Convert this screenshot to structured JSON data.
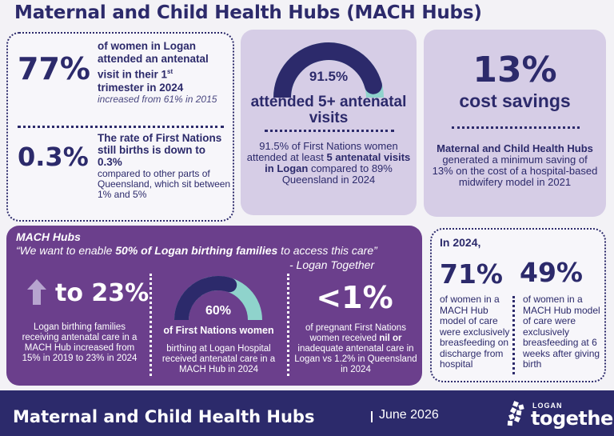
{
  "title": "Maternal and Child Health Hubs (MACH Hubs)",
  "panel1": {
    "stat1": "77%",
    "stat1_line1": "of women in Logan",
    "stat1_line2": "attended an antenatal",
    "stat1_line3a": "visit in their 1",
    "stat1_sup": "st",
    "stat1_line4": "trimester in 2024",
    "stat1_note": "increased from 61% in 2015",
    "stat2": "0.3%",
    "stat2_head": "The rate of First Nations still births is down to 0.3%",
    "stat2_text": "compared to other parts of Queensland, which sit between 1% and 5%"
  },
  "panel2": {
    "gauge_value": 91.5,
    "gauge_label": "91.5%",
    "heading": "attended 5+ antenatal visits",
    "text_a": "91.5% of First Nations women attended at least ",
    "text_b": "5 antenatal visits in Logan",
    "text_c": " compared to 89% Queensland in 2024"
  },
  "panel3": {
    "stat": "13%",
    "heading": "cost savings",
    "text_bold": "Maternal and Child Health Hubs",
    "text_rest": " generated a minimum saving of 13% on the cost of a hospital-based midwifery model in 2021"
  },
  "panel4": {
    "label": "MACH Hubs",
    "quote_a": "“We want to enable ",
    "quote_b": "50% of Logan birthing families",
    "quote_c": " to access this care”",
    "attribution": "- Logan Together",
    "stat1": "to 23%",
    "stat1_text": "Logan birthing families receiving antenatal care in a MACH Hub increased from 15% in 2019 to 23% in 2024",
    "gauge_value": 60,
    "stat2": "60%",
    "stat2_head": "of First Nations women",
    "stat2_text": "birthing at Logan Hospital received antenatal care in a MACH Hub in 2024",
    "stat3": "<1%",
    "stat3_a": "of pregnant First Nations women received ",
    "stat3_b": "nil or",
    "stat3_c": " inadequate antenatal care in Logan vs 1.2% in Queensland in 2024"
  },
  "panel5": {
    "year": "In 2024,",
    "stat1": "71%",
    "stat1_text": "of women in a MACH Hub model of care were exclusively breasfeeding on discharge from hospital",
    "stat2": "49%",
    "stat2_text": "of women in a MACH Hub model of care were exclusively breasfeeding at 6 weeks after giving birth"
  },
  "footer": {
    "title": "Maternal and Child Health Hubs",
    "date": "June 2026",
    "logo_small": "LOGAN",
    "logo_big": "together"
  },
  "colors": {
    "navy": "#2c2a6b",
    "purple": "#6b3f8c",
    "lilac": "#d6cde6",
    "teal": "#8fd3cc"
  }
}
